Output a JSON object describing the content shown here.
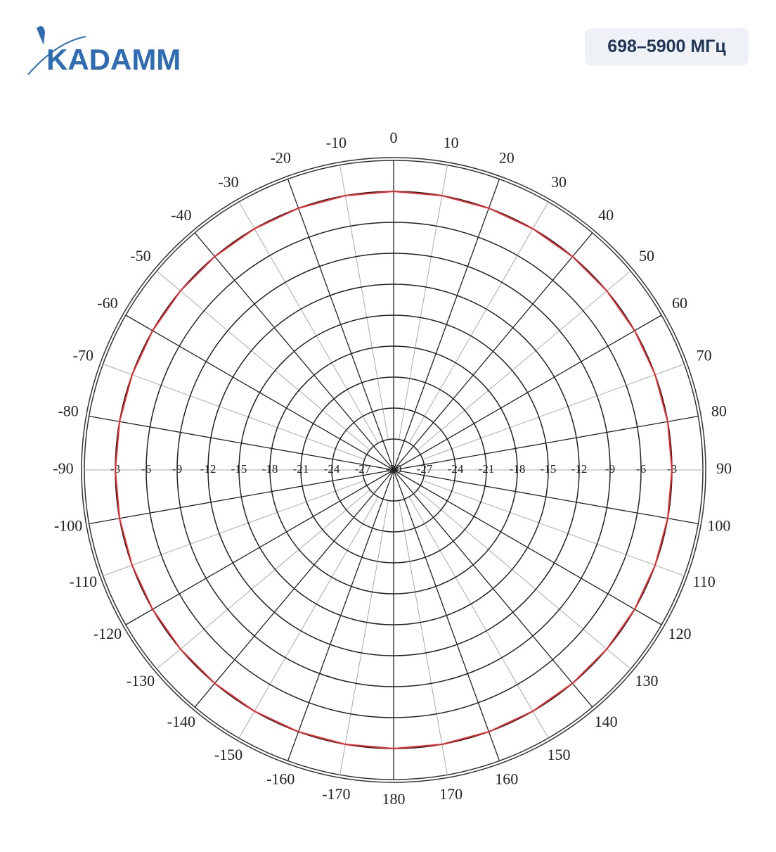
{
  "header": {
    "logo": "KADAMM",
    "badge": "698–5900 МГц"
  },
  "chart_data": {
    "type": "polar",
    "theta": [
      0,
      10,
      20,
      30,
      40,
      50,
      60,
      70,
      80,
      90,
      100,
      110,
      120,
      130,
      140,
      150,
      160,
      170,
      180,
      190,
      200,
      210,
      220,
      230,
      240,
      250,
      260,
      270,
      280,
      290,
      300,
      310,
      320,
      330,
      340,
      350
    ],
    "values": [
      -3,
      -3,
      -3,
      -3,
      -3,
      -3,
      -3,
      -3,
      -3,
      -3,
      -3,
      -3,
      -3,
      -3,
      -3,
      -3,
      -3,
      -3,
      -3,
      -3,
      -3,
      -3,
      -3,
      -3,
      -3,
      -3,
      -3,
      -3,
      -3,
      -3,
      -3,
      -3,
      -3,
      -3,
      -3,
      -3
    ],
    "color": "#e8262a",
    "rlim": [
      -30,
      0
    ],
    "rticks": [
      -30,
      -27,
      -24,
      -21,
      -18,
      -15,
      -12,
      -9,
      -6,
      -3
    ],
    "thetaticks": [
      0,
      10,
      20,
      30,
      40,
      50,
      60,
      70,
      80,
      90,
      100,
      110,
      120,
      130,
      140,
      150,
      160,
      170,
      180,
      -170,
      -160,
      -150,
      -140,
      -130,
      -120,
      -110,
      -100,
      -90,
      -80,
      -70,
      -60,
      -50,
      -40,
      -30,
      -20,
      -10
    ],
    "grid": true
  }
}
